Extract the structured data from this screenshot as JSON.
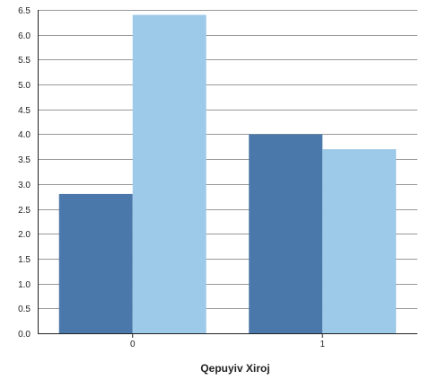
{
  "chart_data": {
    "type": "bar",
    "title": "",
    "xlabel": "Qepuyiv Xiroj",
    "ylabel": "",
    "categories": [
      "0",
      "1"
    ],
    "series": [
      {
        "values": [
          2.8,
          4.0
        ]
      },
      {
        "values": [
          6.4,
          3.7
        ]
      }
    ],
    "ylim": [
      0,
      6.5
    ],
    "yticks": [
      "0.0",
      "0.5",
      "1.0",
      "1.5",
      "2.0",
      "2.5",
      "3.0",
      "3.5",
      "4.0",
      "4.5",
      "5.0",
      "5.5",
      "6.0",
      "6.5"
    ],
    "grid": true,
    "legend": "none"
  },
  "colors": {
    "series": [
      "#4a78aa",
      "#9ecae9"
    ],
    "grid": "#999999",
    "axis": "#222222"
  }
}
